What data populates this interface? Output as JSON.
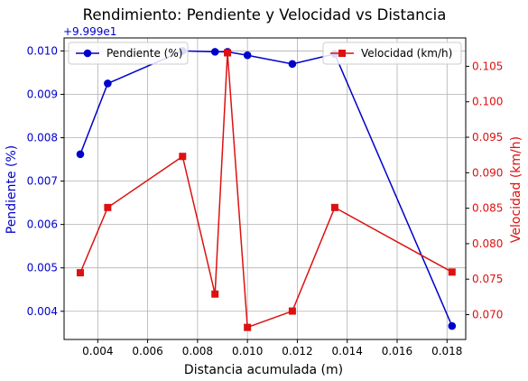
{
  "chart_data": {
    "type": "line",
    "title": "Rendimiento: Pendiente y Velocidad vs Distancia",
    "xlabel": "Distancia acumulada (m)",
    "x": [
      0.0033,
      0.0044,
      0.0074,
      0.0087,
      0.0092,
      0.01,
      0.0118,
      0.0135,
      0.0182
    ],
    "xlim": [
      0.00265,
      0.01875
    ],
    "x_ticks": [
      0.004,
      0.006,
      0.008,
      0.01,
      0.012,
      0.014,
      0.016,
      0.018
    ],
    "x_tick_labels": [
      "0.004",
      "0.006",
      "0.008",
      "0.010",
      "0.012",
      "0.014",
      "0.016",
      "0.018"
    ],
    "grid": true,
    "series": [
      {
        "name": "Pendiente (%)",
        "axis": "left",
        "color": "#0000cc",
        "marker": "circle",
        "y": [
          0.00762,
          0.00925,
          0.01,
          0.00998,
          0.00998,
          0.0099,
          0.0097,
          0.00993,
          0.00366
        ]
      },
      {
        "name": "Velocidad (km/h)",
        "axis": "right",
        "color": "#dd1111",
        "marker": "square",
        "y": [
          0.0759,
          0.0851,
          0.0923,
          0.0729,
          0.1069,
          0.0682,
          0.0705,
          0.0851,
          0.076
        ]
      }
    ],
    "y_left": {
      "label": "Pendiente (%)",
      "offset_label": "+9.999e1",
      "color": "#0000cc",
      "lim": [
        0.00335,
        0.0103
      ],
      "ticks": [
        0.004,
        0.005,
        0.006,
        0.007,
        0.008,
        0.009,
        0.01
      ],
      "tick_labels": [
        "0.004",
        "0.005",
        "0.006",
        "0.007",
        "0.008",
        "0.009",
        "0.010"
      ]
    },
    "y_right": {
      "label": "Velocidad (km/h)",
      "color": "#dd1111",
      "lim": [
        0.0665,
        0.109
      ],
      "ticks": [
        0.07,
        0.075,
        0.08,
        0.085,
        0.09,
        0.095,
        0.1,
        0.105
      ],
      "tick_labels": [
        "0.070",
        "0.075",
        "0.080",
        "0.085",
        "0.090",
        "0.095",
        "0.100",
        "0.105"
      ]
    },
    "legends": [
      {
        "placement": "upper-left",
        "series": "Pendiente (%)"
      },
      {
        "placement": "upper-right",
        "series": "Velocidad (km/h)"
      }
    ]
  }
}
